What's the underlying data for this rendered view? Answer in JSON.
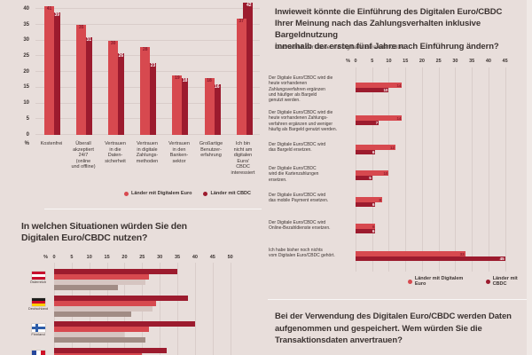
{
  "colors": {
    "background": "#e8dedb",
    "series_euro": "#d7494f",
    "series_cbdc": "#9c1b2e",
    "series_pink": "#d6c5c1",
    "series_taupe": "#a18c85",
    "text": "#3b3331",
    "gridline": "#d9cdca"
  },
  "chart_data": [
    {
      "id": "reasons-top-left",
      "type": "bar",
      "orientation": "vertical",
      "ylabel": "%",
      "ylim": [
        0,
        40
      ],
      "yticks": [
        0,
        5,
        10,
        15,
        20,
        25,
        30,
        35,
        40
      ],
      "grid": true,
      "categories": [
        "Kostenfrei",
        "Überall\nakzeptiert\n24/7\n(online\nund offline)",
        "Vertrauen\nin die\nDaten-\nsicherheit",
        "Vertrauen\nin digitale\nZahlungs-\nmethoden",
        "Vertrauen\nin den\nBanken-\nsektor",
        "Großartige\nBenutzer-\nerfahrung",
        "Ich bin\nnicht am\ndigitalen\nEuro/\nCBDC\ninteressiert"
      ],
      "series": [
        {
          "name": "Länder mit Digitalem Euro",
          "color": "#d7494f",
          "values": [
            41,
            35,
            30,
            28,
            19,
            18,
            37
          ]
        },
        {
          "name": "Länder mit CBDC",
          "color": "#9c1b2e",
          "values": [
            39,
            31,
            26,
            23,
            18,
            16,
            42
          ]
        }
      ],
      "legend_position": "bottom-right"
    },
    {
      "id": "payment-change-right",
      "type": "bar",
      "orientation": "horizontal",
      "title": "Inwieweit könnte die Einführung des Digitalen Euro/CBDC\nIhrer Meinung nach das Zahlungsverhalten inklusive Bargeldnutzung\ninnerhalb der ersten fünf Jahre nach Einführung ändern?",
      "subtitle": "Durchschnitt der Länder mit Digitalem Euro oder CBDC",
      "xlabel": "%",
      "xlim": [
        0,
        45
      ],
      "xticks": [
        0,
        5,
        10,
        15,
        20,
        25,
        30,
        35,
        40,
        45
      ],
      "grid": true,
      "categories": [
        "Der Digitale Euro/CBDC wird die\nheute vorhandenen\nZahlungsverfahren ergänzen\nund häufiger als Bargeld\ngenutzt werden.",
        "Der Digitale Euro/CBDC wird die\nheute vorhandenen Zahlungs-\nverfahren ergänzen und weniger\nhäufig als Bargeld genutzt werden.",
        "Der Digitale Euro/CBDC wird\ndas Bargeld ersetzen.",
        "Der Digitale Euro/CBDC\nwird die Kartenzahlungen\nersetzen.",
        "Der Digitale Euro/CBDC wird\ndas mobile Payment ersetzen.",
        "Der Digitale Euro/CBDC wird\nOnline-Bezahldienste ersetzen.",
        "Ich habe bisher noch nichts\nvom Digitalen Euro/CBDC gehört."
      ],
      "series": [
        {
          "name": "Länder mit Digitalem Euro",
          "color": "#d7494f",
          "values": [
            14,
            14,
            12,
            10,
            8,
            6,
            33
          ]
        },
        {
          "name": "Länder mit CBDC",
          "color": "#9c1b2e",
          "values": [
            10,
            7,
            6,
            5,
            6,
            6,
            45
          ]
        }
      ],
      "legend_position": "bottom-right"
    },
    {
      "id": "situations-bottom-left",
      "type": "bar",
      "orientation": "horizontal",
      "title": "In welchen Situationen würden Sie den\nDigitalen Euro/CBDC nutzen?",
      "xlabel": "%",
      "xlim": [
        0,
        50
      ],
      "xticks": [
        0,
        5,
        10,
        15,
        20,
        25,
        30,
        35,
        40,
        45,
        50
      ],
      "grid": true,
      "series_colors": [
        "#9c1b2e",
        "#d7494f",
        "#d6c5c1",
        "#a18c85"
      ],
      "countries": [
        {
          "label": "Österreich",
          "flag": "at",
          "values": [
            35,
            27,
            26,
            18
          ]
        },
        {
          "label": "Deutschland",
          "flag": "de",
          "values": [
            38,
            29,
            28,
            22
          ]
        },
        {
          "label": "Finnland",
          "flag": "fi",
          "values": [
            40,
            27,
            20,
            26
          ]
        },
        {
          "label": "Frankreich",
          "flag": "fr",
          "values": [
            32,
            25
          ],
          "cut_off": true
        }
      ]
    }
  ],
  "bottom_right": {
    "title": "Bei der Verwendung des Digitalen Euro/CBDC werden Daten\naufgenommen und gespeichert. Wem würden Sie die\nTransaktionsdaten anvertrauen?"
  }
}
